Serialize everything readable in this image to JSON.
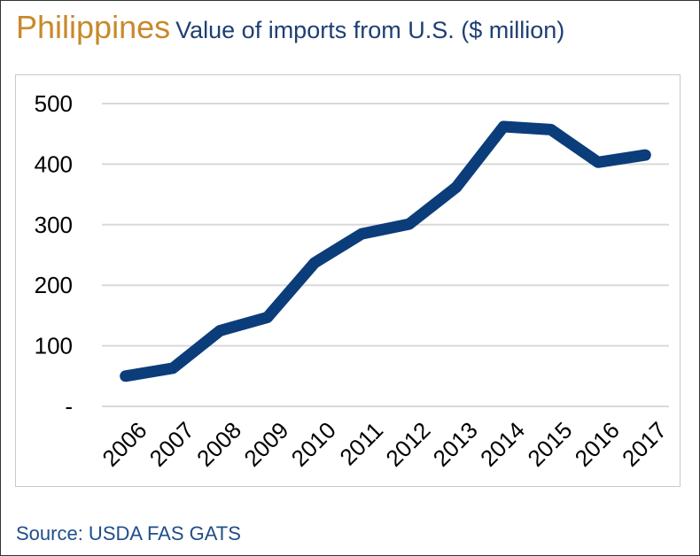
{
  "header": {
    "country": "Philippines",
    "subtitle": "Value of imports from U.S. ($ million)"
  },
  "footer": {
    "source": "Source: USDA FAS GATS"
  },
  "colors": {
    "line": "#0B3D7A",
    "country": "#C8892B",
    "subtitle": "#1F3F73",
    "grid": "#D9D9D9"
  },
  "chart_data": {
    "type": "line",
    "title": "Value of imports from U.S. ($ million)",
    "categories": [
      "2006",
      "2007",
      "2008",
      "2009",
      "2010",
      "2011",
      "2012",
      "2013",
      "2014",
      "2015",
      "2016",
      "2017"
    ],
    "series": [
      {
        "values": [
          50,
          63,
          125,
          147,
          237,
          285,
          301,
          362,
          462,
          457,
          403,
          415
        ]
      }
    ],
    "ylim": [
      0,
      500
    ],
    "yticks": [
      0,
      100,
      200,
      300,
      400,
      500
    ],
    "ytick_labels": [
      "-",
      "100",
      "200",
      "300",
      "400",
      "500"
    ],
    "grid": true,
    "legend": "none"
  }
}
